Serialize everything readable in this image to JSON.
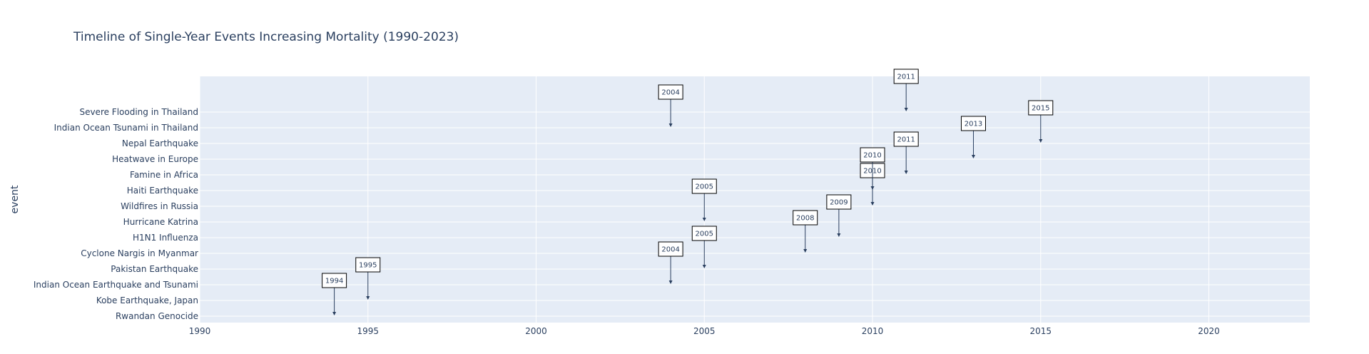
{
  "chart_data": {
    "type": "scatter",
    "title": "Timeline of Single-Year Events Increasing Mortality (1990-2023)",
    "xlabel": "",
    "ylabel": "event",
    "xlim": [
      1990,
      2023
    ],
    "x_ticks": [
      1990,
      1995,
      2000,
      2005,
      2010,
      2015,
      2020
    ],
    "grid": true,
    "categories": [
      "Rwandan Genocide",
      "Kobe Earthquake, Japan",
      "Indian Ocean Earthquake and Tsunami",
      "Pakistan Earthquake",
      "Cyclone Nargis in Myanmar",
      "H1N1 Influenza",
      "Hurricane Katrina",
      "Wildfires in Russia",
      "Haiti Earthquake",
      "Famine in Africa",
      "Heatwave in Europe",
      "Nepal Earthquake",
      "Indian Ocean Tsunami in Thailand",
      "Severe Flooding in Thailand"
    ],
    "points": [
      {
        "event": "Rwandan Genocide",
        "year": 1994
      },
      {
        "event": "Kobe Earthquake, Japan",
        "year": 1995
      },
      {
        "event": "Indian Ocean Earthquake and Tsunami",
        "year": 2004
      },
      {
        "event": "Pakistan Earthquake",
        "year": 2005
      },
      {
        "event": "Cyclone Nargis in Myanmar",
        "year": 2008
      },
      {
        "event": "H1N1 Influenza",
        "year": 2009
      },
      {
        "event": "Hurricane Katrina",
        "year": 2005
      },
      {
        "event": "Wildfires in Russia",
        "year": 2010
      },
      {
        "event": "Haiti Earthquake",
        "year": 2010
      },
      {
        "event": "Famine in Africa",
        "year": 2011
      },
      {
        "event": "Heatwave in Europe",
        "year": 2013
      },
      {
        "event": "Nepal Earthquake",
        "year": 2015
      },
      {
        "event": "Indian Ocean Tsunami in Thailand",
        "year": 2004
      },
      {
        "event": "Severe Flooding in Thailand",
        "year": 2011
      }
    ]
  },
  "colors": {
    "plot_bg": "#e5ecf6",
    "grid": "#ffffff",
    "text": "#2a3f5f",
    "arrow": "#2a3f5f",
    "annotation_border": "#000000",
    "annotation_bg": "#ffffff"
  }
}
